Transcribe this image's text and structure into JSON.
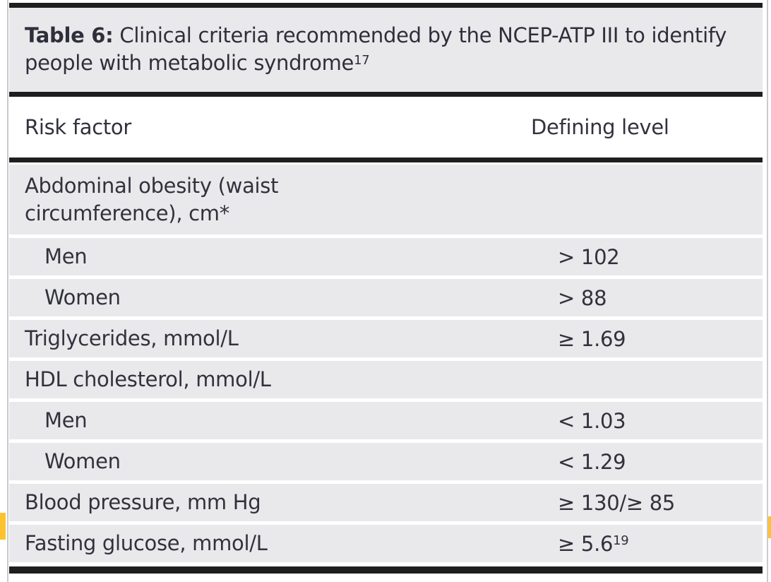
{
  "page": {
    "background_color": "#ffffff",
    "accent_yellow": "#fcc32e",
    "row_gray": "#e9e8eb",
    "rule_black": "#1e1e1e",
    "text_color": "#31323c"
  },
  "table": {
    "caption_prefix": "Table 6:",
    "caption_text": " Clinical criteria recommended by the NCEP-ATP III to identify people with metabolic syndrome",
    "caption_reference": "17",
    "columns": {
      "risk_factor": "Risk factor",
      "defining_level": "Defining level"
    },
    "rows": [
      {
        "label": "Abdominal obesity (waist circumference), cm*",
        "value": "",
        "value_sup": "",
        "indent": false,
        "tall": true
      },
      {
        "label": "Men",
        "value": "> 102",
        "value_sup": "",
        "indent": true,
        "tall": false
      },
      {
        "label": "Women",
        "value": "> 88",
        "value_sup": "",
        "indent": true,
        "tall": false
      },
      {
        "label": "Triglycerides, mmol/L",
        "value": "≥ 1.69",
        "value_sup": "",
        "indent": false,
        "tall": false
      },
      {
        "label": "HDL cholesterol, mmol/L",
        "value": "",
        "value_sup": "",
        "indent": false,
        "tall": false
      },
      {
        "label": "Men",
        "value": "< 1.03",
        "value_sup": "",
        "indent": true,
        "tall": false
      },
      {
        "label": "Women",
        "value": "< 1.29",
        "value_sup": "",
        "indent": true,
        "tall": false
      },
      {
        "label": "Blood pressure, mm Hg",
        "value": "≥ 130/≥ 85",
        "value_sup": "",
        "indent": false,
        "tall": false
      },
      {
        "label": "Fasting glucose, mmol/L",
        "value": "≥ 5.6",
        "value_sup": "19",
        "indent": false,
        "tall": false
      }
    ]
  }
}
